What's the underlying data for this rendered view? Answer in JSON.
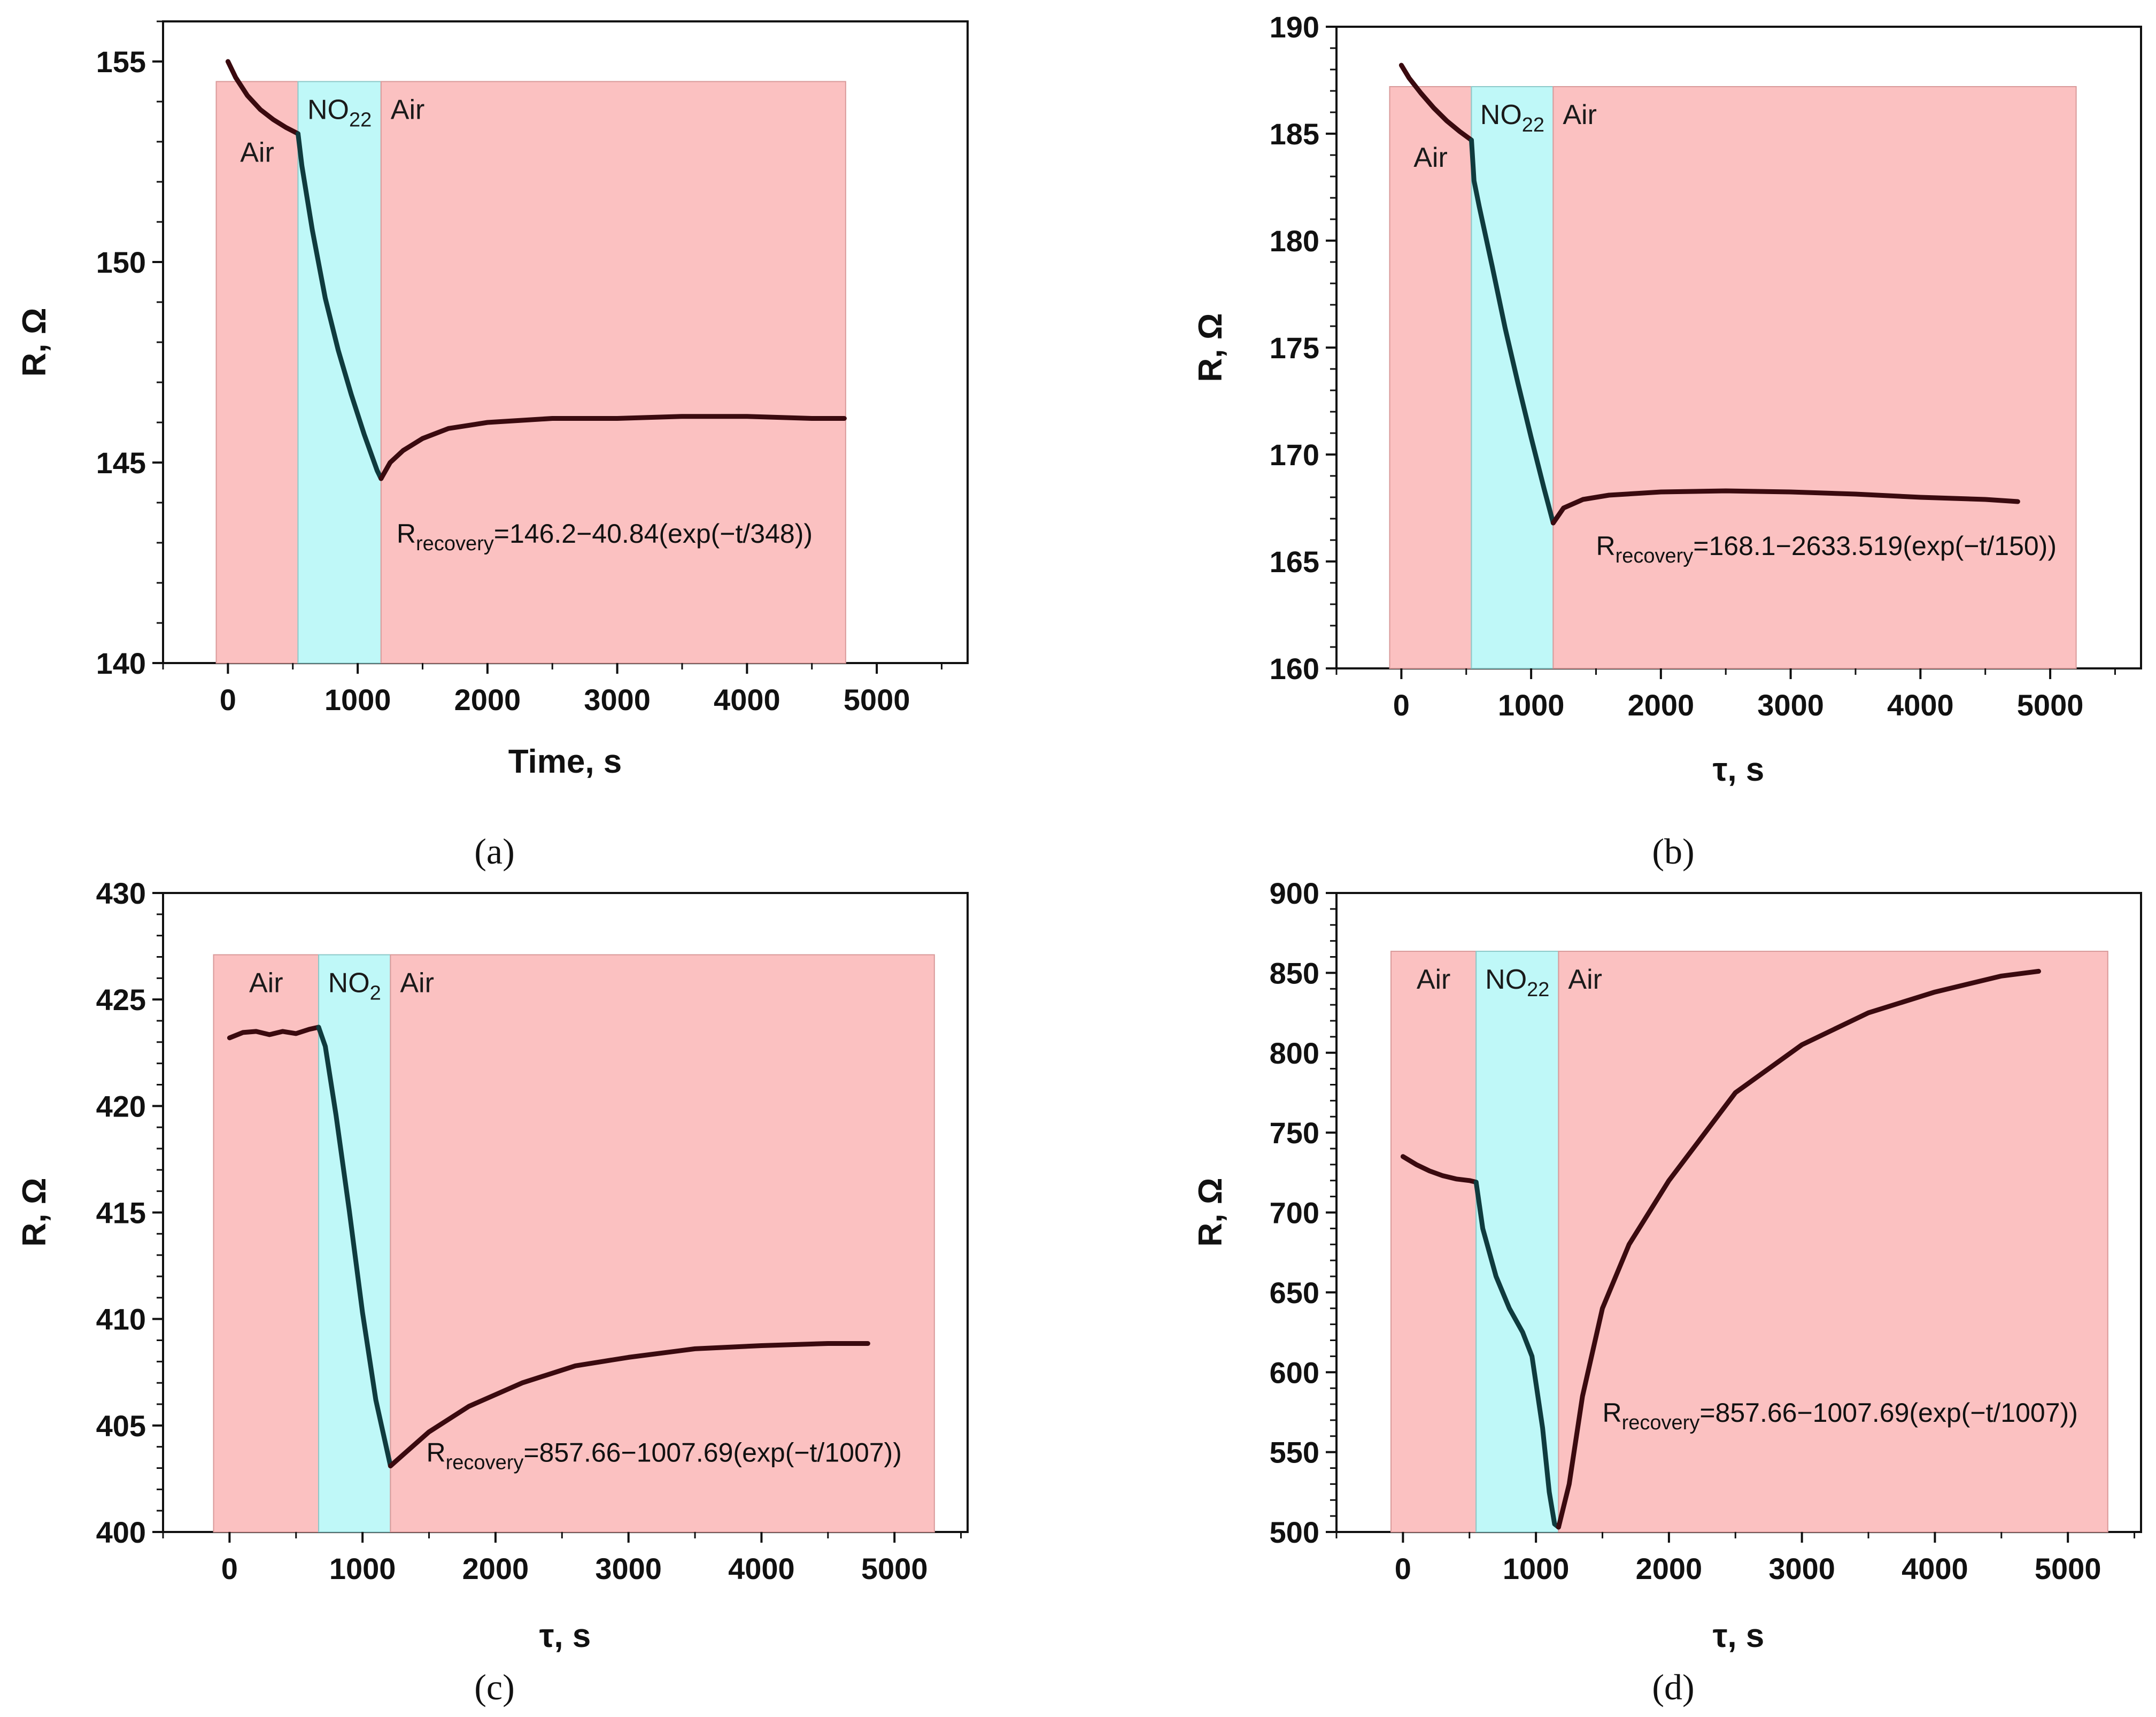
{
  "colors": {
    "air_region": "#fbc1c1",
    "air_region_edge": "#d99a9a",
    "no2_region": "#bff8f8",
    "no2_region_edge": "#8cc9c9",
    "curve_air": "#3a0a0f",
    "curve_no2": "#0f3b3e",
    "axis": "#111111"
  },
  "chart_data": [
    {
      "type": "line",
      "panel_label": "(a)",
      "xlabel": "Time, s",
      "ylabel": "R, Ω",
      "xlim": [
        -500,
        5700
      ],
      "ylim": [
        140,
        156
      ],
      "xticks": [
        0,
        1000,
        2000,
        3000,
        4000,
        5000
      ],
      "yticks": [
        140,
        145,
        150,
        155
      ],
      "yminor": 1,
      "regions": [
        {
          "kind": "air",
          "label": "Air",
          "x0": -90,
          "x1": 540,
          "ytop": 154.5
        },
        {
          "kind": "no2",
          "label": "NO",
          "label_sub": "22",
          "x0": 540,
          "x1": 1180,
          "ytop": 154.5
        },
        {
          "kind": "air",
          "label": "Air",
          "x0": 1180,
          "x1": 4760,
          "ytop": 154.5
        }
      ],
      "annotation": {
        "prefix": "R",
        "sub": "recovery",
        "text": "=146.2−40.84(exp(−t/348))",
        "x": 1300,
        "y": 143.0
      },
      "series": [
        {
          "name": "air-baseline",
          "phase": "air",
          "x": [
            0,
            60,
            150,
            250,
            350,
            450,
            540
          ],
          "y": [
            155.0,
            154.6,
            154.15,
            153.8,
            153.55,
            153.35,
            153.2
          ]
        },
        {
          "name": "no2-exposure",
          "phase": "no2",
          "x": [
            540,
            570,
            650,
            750,
            850,
            950,
            1050,
            1150,
            1180
          ],
          "y": [
            153.2,
            152.4,
            150.8,
            149.1,
            147.8,
            146.7,
            145.7,
            144.8,
            144.6
          ]
        },
        {
          "name": "recovery",
          "phase": "air",
          "x": [
            1180,
            1250,
            1350,
            1500,
            1700,
            2000,
            2500,
            3000,
            3500,
            4000,
            4500,
            4750
          ],
          "y": [
            144.6,
            145.0,
            145.3,
            145.6,
            145.85,
            146.0,
            146.1,
            146.1,
            146.15,
            146.15,
            146.1,
            146.1
          ]
        }
      ]
    },
    {
      "type": "line",
      "panel_label": "(b)",
      "xlabel": "τ, s",
      "ylabel": "R, Ω",
      "xlim": [
        -500,
        5700
      ],
      "ylim": [
        160,
        190
      ],
      "xticks": [
        0,
        1000,
        2000,
        3000,
        4000,
        5000
      ],
      "yticks": [
        160,
        165,
        170,
        175,
        180,
        185,
        190
      ],
      "yminor": 1,
      "regions": [
        {
          "kind": "air",
          "label": "Air",
          "x0": -90,
          "x1": 540,
          "ytop": 187.2
        },
        {
          "kind": "no2",
          "label": "NO",
          "label_sub": "22",
          "x0": 540,
          "x1": 1170,
          "ytop": 187.2
        },
        {
          "kind": "air",
          "label": "Air",
          "x0": 1170,
          "x1": 5200,
          "ytop": 187.2
        }
      ],
      "annotation": {
        "prefix": "R",
        "sub": "recovery",
        "text": "=168.1−2633.519(exp(−t/150))",
        "x": 1500,
        "y": 165.3
      },
      "series": [
        {
          "name": "air-baseline",
          "phase": "air",
          "x": [
            0,
            60,
            150,
            250,
            350,
            450,
            540
          ],
          "y": [
            188.2,
            187.6,
            186.9,
            186.2,
            185.6,
            185.1,
            184.7
          ]
        },
        {
          "name": "no2-exposure",
          "phase": "no2",
          "x": [
            540,
            560,
            600,
            700,
            800,
            900,
            1000,
            1100,
            1170
          ],
          "y": [
            184.7,
            182.8,
            181.6,
            178.8,
            175.9,
            173.3,
            170.8,
            168.4,
            166.8
          ]
        },
        {
          "name": "recovery",
          "phase": "air",
          "x": [
            1170,
            1250,
            1400,
            1600,
            2000,
            2500,
            3000,
            3500,
            4000,
            4500,
            4750
          ],
          "y": [
            166.8,
            167.5,
            167.9,
            168.1,
            168.25,
            168.3,
            168.25,
            168.15,
            168.0,
            167.9,
            167.8
          ]
        }
      ]
    },
    {
      "type": "line",
      "panel_label": "(c)",
      "xlabel": "τ, s",
      "ylabel": "R, Ω",
      "xlim": [
        -500,
        5550
      ],
      "ylim": [
        400,
        430
      ],
      "xticks": [
        0,
        1000,
        2000,
        3000,
        4000,
        5000
      ],
      "yticks": [
        400,
        405,
        410,
        415,
        420,
        425,
        430
      ],
      "yminor": 1,
      "regions": [
        {
          "kind": "air",
          "label": "Air",
          "x0": -120,
          "x1": 670,
          "ytop": 427.1
        },
        {
          "kind": "no2",
          "label": "NO",
          "label_sub": "2",
          "x0": 670,
          "x1": 1210,
          "ytop": 427.1
        },
        {
          "kind": "air",
          "label": "Air",
          "x0": 1210,
          "x1": 5300,
          "ytop": 427.1
        }
      ],
      "annotation": {
        "prefix": "R",
        "sub": "recovery",
        "text": "=857.66−1007.69(exp(−t/1007))",
        "x": 1480,
        "y": 403.3
      },
      "series": [
        {
          "name": "air-baseline",
          "phase": "air",
          "x": [
            0,
            100,
            200,
            300,
            400,
            500,
            600,
            670
          ],
          "y": [
            423.2,
            423.45,
            423.5,
            423.35,
            423.5,
            423.4,
            423.6,
            423.7
          ]
        },
        {
          "name": "no2-exposure",
          "phase": "no2",
          "x": [
            670,
            720,
            800,
            900,
            1000,
            1100,
            1210
          ],
          "y": [
            423.7,
            422.8,
            419.6,
            415.1,
            410.3,
            406.2,
            403.1
          ]
        },
        {
          "name": "recovery",
          "phase": "air",
          "x": [
            1210,
            1300,
            1500,
            1800,
            2200,
            2600,
            3000,
            3500,
            4000,
            4500,
            4800
          ],
          "y": [
            403.1,
            403.6,
            404.7,
            405.9,
            407.0,
            407.8,
            408.2,
            408.6,
            408.75,
            408.85,
            408.85
          ]
        }
      ]
    },
    {
      "type": "line",
      "panel_label": "(d)",
      "xlabel": "τ, s",
      "ylabel": "R, Ω",
      "xlim": [
        -500,
        5550
      ],
      "ylim": [
        500,
        900
      ],
      "xticks": [
        0,
        1000,
        2000,
        3000,
        4000,
        5000
      ],
      "yticks": [
        500,
        550,
        600,
        650,
        700,
        750,
        800,
        850,
        900
      ],
      "yminor": 10,
      "regions": [
        {
          "kind": "air",
          "label": "Air",
          "x0": -90,
          "x1": 550,
          "ytop": 863.5
        },
        {
          "kind": "no2",
          "label": "NO",
          "label_sub": "22",
          "x0": 550,
          "x1": 1170,
          "ytop": 863.5
        },
        {
          "kind": "air",
          "label": "Air",
          "x0": 1170,
          "x1": 5300,
          "ytop": 863.5
        }
      ],
      "annotation": {
        "prefix": "R",
        "sub": "recovery",
        "text": "=857.66−1007.69(exp(−t/1007))",
        "x": 1500,
        "y": 569
      },
      "series": [
        {
          "name": "air-baseline",
          "phase": "air",
          "x": [
            0,
            100,
            200,
            300,
            400,
            500,
            550
          ],
          "y": [
            735,
            730,
            726,
            723,
            721,
            720,
            719
          ]
        },
        {
          "name": "no2-exposure",
          "phase": "no2",
          "x": [
            550,
            600,
            700,
            800,
            900,
            970,
            1050,
            1100,
            1140,
            1170
          ],
          "y": [
            719,
            690,
            660,
            640,
            625,
            610,
            565,
            525,
            505,
            503
          ]
        },
        {
          "name": "recovery",
          "phase": "air",
          "x": [
            1170,
            1250,
            1350,
            1500,
            1700,
            2000,
            2500,
            3000,
            3500,
            4000,
            4500,
            4780
          ],
          "y": [
            503,
            530,
            585,
            640,
            680,
            720,
            775,
            805,
            825,
            838,
            848,
            851
          ]
        }
      ]
    }
  ]
}
